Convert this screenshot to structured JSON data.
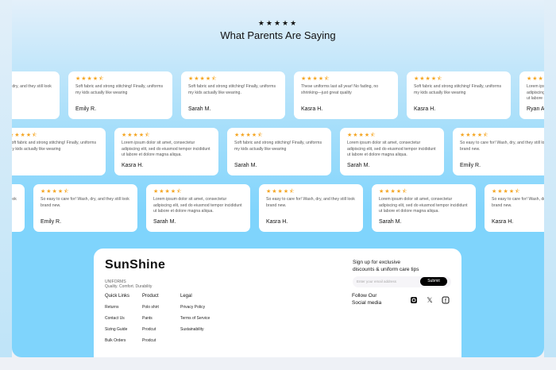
{
  "header": {
    "stars": "★★★★★",
    "title": "What Parents Are Saying"
  },
  "colors": {
    "star": "#f5a623",
    "accent": "#7fd4fc"
  },
  "rows": [
    [
      {
        "rating": "★★★★⯪",
        "text": "So easy to care for! Wash, dry, and they still look brand new.",
        "name": ""
      },
      {
        "rating": "★★★★⯪",
        "text": "Soft fabric and strong stitching! Finally, uniforms my kids actually like wearing",
        "name": "Emily R."
      },
      {
        "rating": "★★★★⯪",
        "text": "Soft fabric and strong stitching! Finally, uniforms my kids actually like wearing.",
        "name": "Sarah M."
      },
      {
        "rating": "★★★★⯪",
        "text": "These uniforms last all year! No fading, no shrinking—just great quality",
        "name": "Kasra H."
      },
      {
        "rating": "★★★★⯪",
        "text": "Soft fabric and strong stitching! Finally, uniforms my kids actually like wearing",
        "name": "Kasra H."
      },
      {
        "rating": "★★★★⯪",
        "text": "Lorem ipsum dolor sit amet, consectetur adipiscing elit, sed do eiusmod tempor incididunt ut labore et dolore magna aliqua.",
        "name": "Ryan Andre"
      }
    ],
    [
      {
        "rating": "★★★★⯪",
        "text": "Soft fabric and strong stitching! Finally, uniforms my kids actually like wearing",
        "name": ""
      },
      {
        "rating": "★★★★⯪",
        "text": "Lorem ipsum dolor sit amet, consectetur adipiscing elit, sed do eiusmod tempor incididunt ut labore et dolore magna aliqua.",
        "name": "Kasra H."
      },
      {
        "rating": "★★★★⯪",
        "text": "Soft fabric and strong stitching! Finally, uniforms my kids actually like wearing",
        "name": "Sarah M."
      },
      {
        "rating": "★★★★⯪",
        "text": "Lorem ipsum dolor sit amet, consectetur adipiscing elit, sed do eiusmod tempor incididunt ut labore et dolore magna aliqua.",
        "name": "Sarah M."
      },
      {
        "rating": "★★★★⯪",
        "text": "So easy to care for! Wash, dry, and they still look brand new.",
        "name": "Emily R."
      }
    ],
    [
      {
        "rating": "★★★★⯪",
        "text": "So easy to care for! Wash, dry, and they still look brand new.",
        "name": ""
      },
      {
        "rating": "★★★★⯪",
        "text": "So easy to care for! Wash, dry, and they still look brand new.",
        "name": "Emily R."
      },
      {
        "rating": "★★★★⯪",
        "text": "Lorem ipsum dolor sit amet, consectetur adipiscing elit, sed do eiusmod tempor incididunt ut labore et dolore magna aliqua.",
        "name": "Sarah M."
      },
      {
        "rating": "★★★★⯪",
        "text": "So easy to care for! Wash, dry, and they still look brand new.",
        "name": "Kasra H."
      },
      {
        "rating": "★★★★⯪",
        "text": "Lorem ipsum dolor sit amet, consectetur adipiscing elit, sed do eiusmod tempor incididunt ut labore et dolore magna aliqua.",
        "name": "Sarah M."
      },
      {
        "rating": "★★★★⯪",
        "text": "So easy to care for! Wash, dry, and they still look brand new.",
        "name": "Kasra H."
      }
    ]
  ],
  "footer": {
    "logo": "SunShine",
    "brand_sub": "UNIFORMS",
    "tagline": "Quality. Comfort. Durability",
    "columns": [
      {
        "heading": "Quick Links",
        "links": [
          "Returns",
          "Contact Us",
          "Sizing Guide",
          "Bulk Orders"
        ]
      },
      {
        "heading": "Product",
        "links": [
          "Polo shirt",
          "Pants",
          "Prodcut",
          "Prodcut"
        ]
      },
      {
        "heading": "Legal",
        "links": [
          "Privacy Policy",
          "Terms of Service",
          "Sustainability"
        ]
      }
    ],
    "signup_line1": "Sign up for exclusive",
    "signup_line2": "discounts & uniform care tips",
    "email_placeholder": "Enter your email address",
    "submit": "Submit",
    "follow_line1": "Follow Our",
    "follow_line2": "Social media",
    "social": [
      "instagram-icon",
      "x-icon",
      "facebook-icon"
    ]
  }
}
